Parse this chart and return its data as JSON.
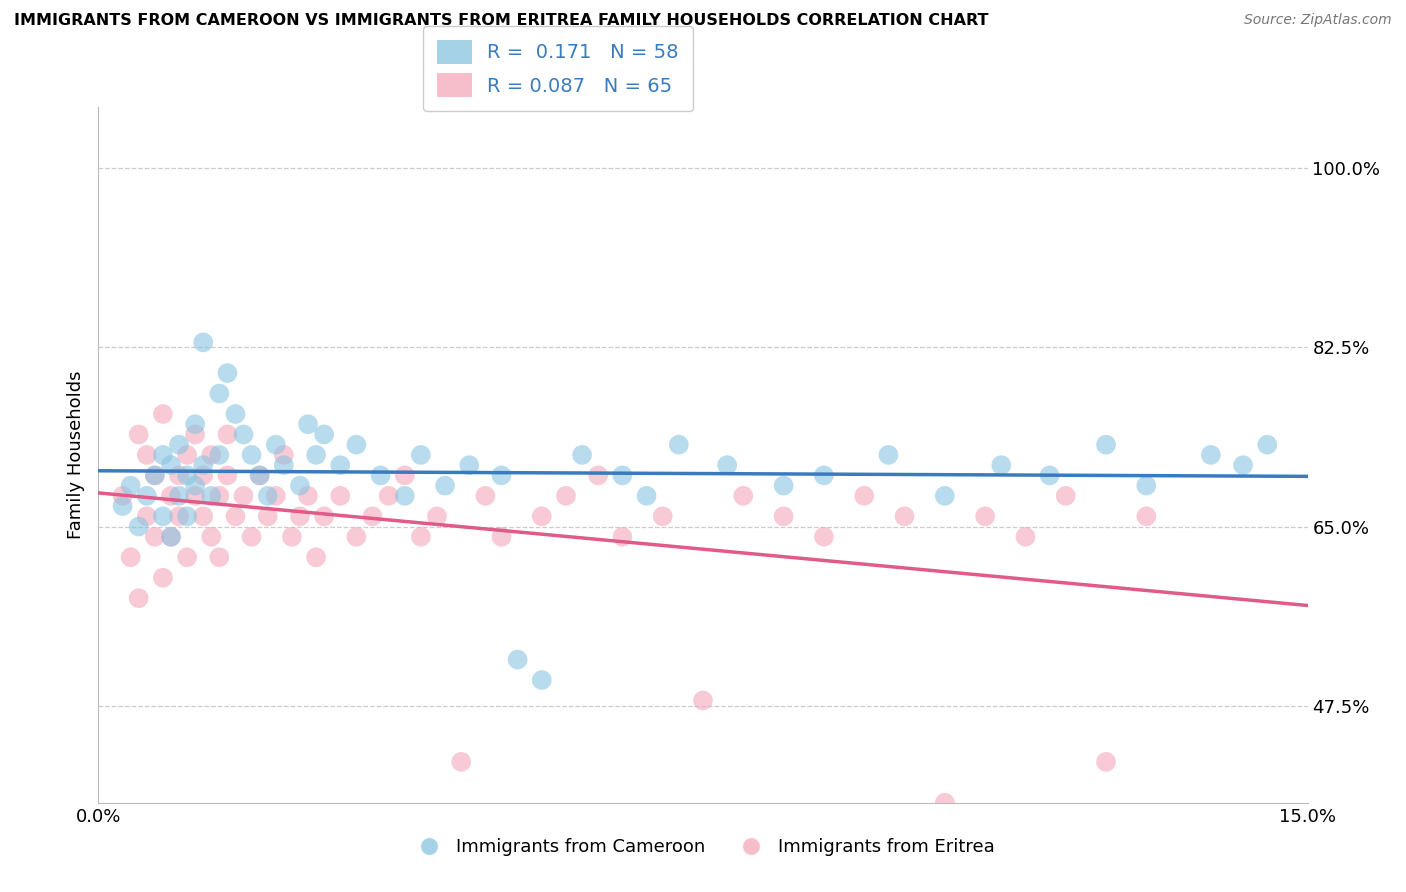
{
  "title": "IMMIGRANTS FROM CAMEROON VS IMMIGRANTS FROM ERITREA FAMILY HOUSEHOLDS CORRELATION CHART",
  "source": "Source: ZipAtlas.com",
  "ylabel": "Family Households",
  "ytick_labels": [
    "47.5%",
    "65.0%",
    "82.5%",
    "100.0%"
  ],
  "ytick_values": [
    0.475,
    0.65,
    0.825,
    1.0
  ],
  "xlim": [
    0.0,
    0.15
  ],
  "ylim": [
    0.38,
    1.06
  ],
  "xtick_left": "0.0%",
  "xtick_right": "15.0%",
  "legend_r1": "R = ",
  "legend_r1_val": " 0.171",
  "legend_n1": "N = ",
  "legend_n1_val": "58",
  "legend_r2": "R = ",
  "legend_r2_val": "0.087",
  "legend_n2": "N = ",
  "legend_n2_val": "65",
  "legend_bottom_label1": "Immigrants from Cameroon",
  "legend_bottom_label2": "Immigrants from Eritrea",
  "color_blue": "#89c4e1",
  "color_pink": "#f4a7b9",
  "color_blue_line": "#3a7bbf",
  "color_pink_line": "#e05a8a",
  "color_legend_text": "#3a7bbf",
  "background_color": "#ffffff",
  "grid_color": "#cccccc",
  "cameroon_x": [
    0.003,
    0.004,
    0.005,
    0.006,
    0.007,
    0.008,
    0.008,
    0.009,
    0.009,
    0.01,
    0.01,
    0.011,
    0.011,
    0.012,
    0.012,
    0.013,
    0.013,
    0.014,
    0.015,
    0.015,
    0.016,
    0.017,
    0.018,
    0.019,
    0.02,
    0.021,
    0.022,
    0.023,
    0.025,
    0.026,
    0.027,
    0.028,
    0.03,
    0.032,
    0.035,
    0.038,
    0.04,
    0.043,
    0.046,
    0.05,
    0.052,
    0.055,
    0.06,
    0.065,
    0.068,
    0.072,
    0.078,
    0.085,
    0.09,
    0.098,
    0.105,
    0.112,
    0.118,
    0.125,
    0.13,
    0.138,
    0.142,
    0.145
  ],
  "cameroon_y": [
    0.67,
    0.69,
    0.65,
    0.68,
    0.7,
    0.72,
    0.66,
    0.64,
    0.71,
    0.68,
    0.73,
    0.7,
    0.66,
    0.75,
    0.69,
    0.83,
    0.71,
    0.68,
    0.78,
    0.72,
    0.8,
    0.76,
    0.74,
    0.72,
    0.7,
    0.68,
    0.73,
    0.71,
    0.69,
    0.75,
    0.72,
    0.74,
    0.71,
    0.73,
    0.7,
    0.68,
    0.72,
    0.69,
    0.71,
    0.7,
    0.52,
    0.5,
    0.72,
    0.7,
    0.68,
    0.73,
    0.71,
    0.69,
    0.7,
    0.72,
    0.68,
    0.71,
    0.7,
    0.73,
    0.69,
    0.72,
    0.71,
    0.73
  ],
  "eritrea_x": [
    0.003,
    0.004,
    0.005,
    0.005,
    0.006,
    0.006,
    0.007,
    0.007,
    0.008,
    0.008,
    0.009,
    0.009,
    0.01,
    0.01,
    0.011,
    0.011,
    0.012,
    0.012,
    0.013,
    0.013,
    0.014,
    0.014,
    0.015,
    0.015,
    0.016,
    0.016,
    0.017,
    0.018,
    0.019,
    0.02,
    0.021,
    0.022,
    0.023,
    0.024,
    0.025,
    0.026,
    0.027,
    0.028,
    0.03,
    0.032,
    0.034,
    0.036,
    0.038,
    0.04,
    0.042,
    0.045,
    0.048,
    0.05,
    0.055,
    0.058,
    0.062,
    0.065,
    0.07,
    0.075,
    0.08,
    0.085,
    0.09,
    0.095,
    0.1,
    0.105,
    0.11,
    0.115,
    0.12,
    0.125,
    0.13
  ],
  "eritrea_y": [
    0.68,
    0.62,
    0.74,
    0.58,
    0.66,
    0.72,
    0.64,
    0.7,
    0.6,
    0.76,
    0.68,
    0.64,
    0.7,
    0.66,
    0.72,
    0.62,
    0.68,
    0.74,
    0.66,
    0.7,
    0.72,
    0.64,
    0.68,
    0.62,
    0.7,
    0.74,
    0.66,
    0.68,
    0.64,
    0.7,
    0.66,
    0.68,
    0.72,
    0.64,
    0.66,
    0.68,
    0.62,
    0.66,
    0.68,
    0.64,
    0.66,
    0.68,
    0.7,
    0.64,
    0.66,
    0.42,
    0.68,
    0.64,
    0.66,
    0.68,
    0.7,
    0.64,
    0.66,
    0.48,
    0.68,
    0.66,
    0.64,
    0.68,
    0.66,
    0.38,
    0.66,
    0.64,
    0.68,
    0.42,
    0.66
  ]
}
